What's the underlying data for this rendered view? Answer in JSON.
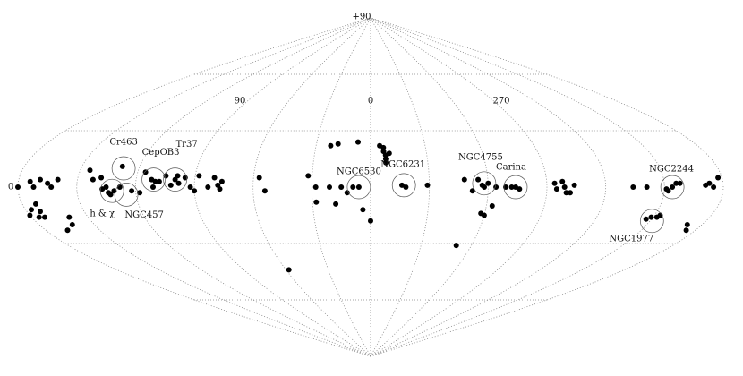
{
  "grid": {
    "longitudes": [
      -180,
      -150,
      -120,
      -90,
      -60,
      -30,
      0,
      30,
      60,
      90,
      120,
      150,
      180
    ],
    "latitudes": [
      -60,
      -30,
      30,
      60
    ]
  },
  "grid_labels": [
    "+90",
    "0",
    "90",
    "0",
    "270"
  ],
  "clusters": [
    [
      180,
      0
    ],
    [
      174,
      3
    ],
    [
      172,
      0
    ],
    [
      169,
      4
    ],
    [
      165,
      2
    ],
    [
      163,
      0
    ],
    [
      160,
      4
    ],
    [
      173,
      -9
    ],
    [
      177,
      -12
    ],
    [
      173,
      -13
    ],
    [
      176,
      -16
    ],
    [
      173,
      -16
    ],
    [
      160,
      -16
    ],
    [
      162,
      -20
    ],
    [
      168,
      -23
    ],
    [
      145,
      9
    ],
    [
      142,
      4
    ],
    [
      138,
      5
    ],
    [
      135,
      0
    ],
    [
      134,
      -3
    ],
    [
      137,
      -1
    ],
    [
      133,
      -4
    ],
    [
      131,
      -2
    ],
    [
      128,
      0
    ],
    [
      129,
      11
    ],
    [
      122,
      -2
    ],
    [
      118,
      -3
    ],
    [
      116,
      8
    ],
    [
      112,
      4
    ],
    [
      111,
      0
    ],
    [
      110,
      3
    ],
    [
      108,
      3
    ],
    [
      105,
      6
    ],
    [
      102,
      1
    ],
    [
      100,
      4
    ],
    [
      99,
      6
    ],
    [
      98,
      2
    ],
    [
      95,
      5
    ],
    [
      92,
      0
    ],
    [
      90,
      -2
    ],
    [
      88,
      6
    ],
    [
      83,
      0
    ],
    [
      80,
      5
    ],
    [
      78,
      1
    ],
    [
      76,
      3
    ],
    [
      77,
      -1
    ],
    [
      57,
      5
    ],
    [
      54,
      -2
    ],
    [
      58,
      -44
    ],
    [
      32,
      6
    ],
    [
      28,
      0
    ],
    [
      28,
      -8
    ],
    [
      21,
      0
    ],
    [
      22,
      22
    ],
    [
      18,
      23
    ],
    [
      18,
      -9
    ],
    [
      15,
      0
    ],
    [
      12,
      -3
    ],
    [
      9,
      0
    ],
    [
      7,
      24
    ],
    [
      6,
      0
    ],
    [
      4,
      -12
    ],
    [
      0,
      -18
    ],
    [
      355,
      22
    ],
    [
      353,
      21
    ],
    [
      353,
      19
    ],
    [
      352,
      17
    ],
    [
      350,
      18
    ],
    [
      352,
      15
    ],
    [
      352,
      13
    ],
    [
      344,
      1
    ],
    [
      342,
      0
    ],
    [
      331,
      1
    ],
    [
      309,
      -31
    ],
    [
      312,
      4
    ],
    [
      308,
      -2
    ],
    [
      305,
      4
    ],
    [
      303,
      1
    ],
    [
      302,
      0
    ],
    [
      300,
      2
    ],
    [
      302,
      -14
    ],
    [
      300,
      -15
    ],
    [
      297,
      -10
    ],
    [
      296,
      0
    ],
    [
      291,
      0
    ],
    [
      288,
      0
    ],
    [
      286,
      0
    ],
    [
      284,
      -1
    ],
    [
      266,
      2
    ],
    [
      265,
      -1
    ],
    [
      261,
      0
    ],
    [
      260,
      -3
    ],
    [
      262,
      3
    ],
    [
      256,
      1
    ],
    [
      258,
      -3
    ],
    [
      226,
      0
    ],
    [
      219,
      0
    ],
    [
      209,
      -1
    ],
    [
      206,
      0
    ],
    [
      204,
      2
    ],
    [
      202,
      2
    ],
    [
      208,
      -2
    ],
    [
      213,
      -17
    ],
    [
      211,
      -16
    ],
    [
      208,
      -16
    ],
    [
      207,
      -15
    ],
    [
      185,
      -23
    ],
    [
      188,
      -20
    ],
    [
      189,
      1
    ],
    [
      187,
      2
    ],
    [
      185,
      0
    ],
    [
      180,
      -15
    ],
    [
      182,
      5
    ]
  ],
  "named_clusters": [
    {
      "name": "Cr463",
      "l": 128,
      "b": 10
    },
    {
      "name": "CepOB3",
      "l": 111,
      "b": 4
    },
    {
      "name": "Tr37",
      "l": 100,
      "b": 4
    },
    {
      "name": "h & χ",
      "l": 132,
      "b": -2
    },
    {
      "name": "NGC457",
      "l": 125,
      "b": -4
    },
    {
      "name": "NGC6530",
      "l": 6,
      "b": 0
    },
    {
      "name": "NGC6231",
      "l": 343,
      "b": 1
    },
    {
      "name": "NGC4755",
      "l": 302,
      "b": 2
    },
    {
      "name": "Carina",
      "l": 286,
      "b": 0
    },
    {
      "name": "NGC2244",
      "l": 206,
      "b": 0
    },
    {
      "name": "NGC1977",
      "l": 209,
      "b": -18
    }
  ]
}
